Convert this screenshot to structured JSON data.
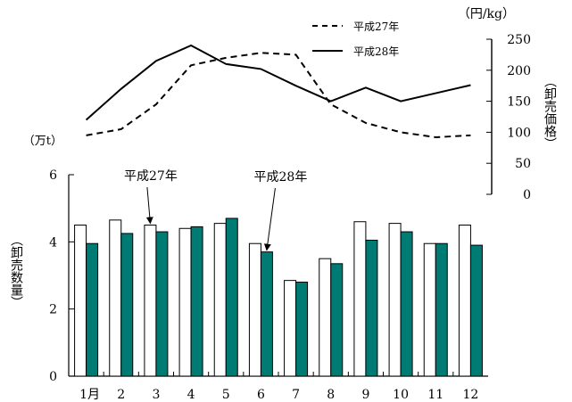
{
  "chart_data": {
    "type": "bar+line",
    "title": "",
    "categories": [
      "1月",
      "2",
      "3",
      "4",
      "5",
      "6",
      "7",
      "8",
      "9",
      "10",
      "11",
      "12"
    ],
    "bar_panel": {
      "ylabel": "（卸売数量）",
      "unit_label": "（万t）",
      "ylim": [
        0,
        6
      ],
      "yticks": [
        0,
        2,
        4,
        6
      ],
      "series": [
        {
          "name": "平成27年",
          "fill": "#ffffff",
          "values": [
            4.5,
            4.65,
            4.5,
            4.4,
            4.55,
            3.95,
            2.85,
            3.5,
            4.6,
            4.55,
            3.95,
            4.5
          ]
        },
        {
          "name": "平成28年",
          "fill": "#007b73",
          "values": [
            3.95,
            4.25,
            4.3,
            4.45,
            4.7,
            3.7,
            2.8,
            3.35,
            4.05,
            4.3,
            3.95,
            3.9
          ]
        }
      ],
      "annotations": [
        {
          "text": "平成27年",
          "series": 0,
          "category_index": 2
        },
        {
          "text": "平成28年",
          "series": 1,
          "category_index": 5
        }
      ]
    },
    "line_panel": {
      "ylabel": "（卸売価格）",
      "unit_label": "（円/kg）",
      "ylim": [
        0,
        250
      ],
      "yticks": [
        0,
        50,
        100,
        150,
        200,
        250
      ],
      "series": [
        {
          "name": "平成27年",
          "style": "dashed",
          "values": [
            95,
            105,
            145,
            208,
            220,
            228,
            225,
            145,
            115,
            100,
            92,
            95
          ]
        },
        {
          "name": "平成28年",
          "style": "solid",
          "values": [
            120,
            170,
            215,
            240,
            210,
            202,
            175,
            150,
            172,
            150,
            163,
            176
          ]
        }
      ]
    }
  }
}
